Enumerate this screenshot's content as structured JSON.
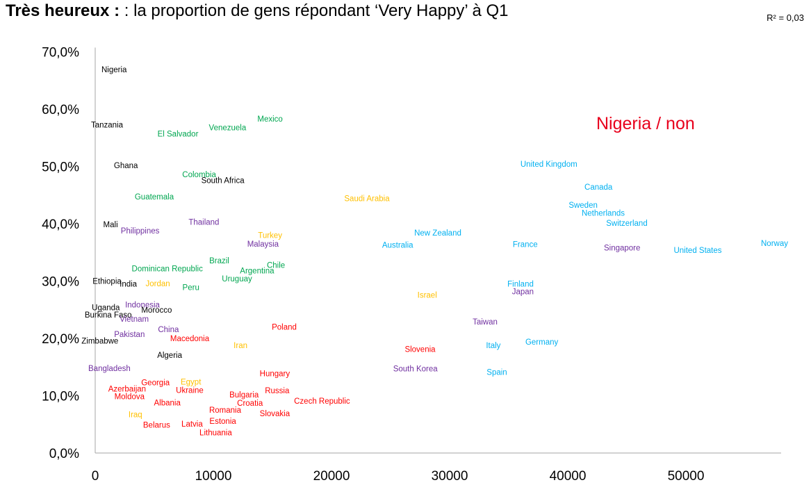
{
  "header": {
    "title_bold": "Très heureux :",
    "title_rest": " : la proportion de gens répondant ‘Very Happy’ à Q1",
    "r2": "R² = 0,03"
  },
  "annotation": "Nigeria / non",
  "colors": {
    "black": "#000000",
    "green": "#00a650",
    "purple": "#7030a0",
    "cyan": "#00b0f0",
    "orange": "#ffc000",
    "red": "#ff0000"
  },
  "chart_data": {
    "type": "scatter",
    "title": "Très heureux : : la proportion de gens répondant ‘Very Happy’ à Q1",
    "xlabel": "",
    "ylabel": "",
    "xlim": [
      0,
      58500
    ],
    "ylim": [
      0,
      70
    ],
    "x_ticks": [
      "0",
      "10000",
      "20000",
      "30000",
      "40000",
      "50000"
    ],
    "y_ticks": [
      "0,0%",
      "10,0%",
      "20,0%",
      "30,0%",
      "40,0%",
      "50,0%",
      "60,0%",
      "70,0%"
    ],
    "grid": false,
    "points": [
      {
        "label": "Nigeria",
        "x": 1600,
        "y": 66.9,
        "color": "black"
      },
      {
        "label": "Tanzania",
        "x": 1000,
        "y": 57.3,
        "color": "black"
      },
      {
        "label": "Ghana",
        "x": 2600,
        "y": 50.2,
        "color": "black"
      },
      {
        "label": "South Africa",
        "x": 10800,
        "y": 47.6,
        "color": "black"
      },
      {
        "label": "Mali",
        "x": 1300,
        "y": 39.9,
        "color": "black"
      },
      {
        "label": "Ethiopia",
        "x": 1000,
        "y": 30.0,
        "color": "black"
      },
      {
        "label": "India",
        "x": 2800,
        "y": 29.5,
        "color": "black"
      },
      {
        "label": "Uganda",
        "x": 900,
        "y": 25.4,
        "color": "black"
      },
      {
        "label": "Morocco",
        "x": 5200,
        "y": 25.0,
        "color": "black"
      },
      {
        "label": "Burkina Faso",
        "x": 1100,
        "y": 24.1,
        "color": "black"
      },
      {
        "label": "Zimbabwe",
        "x": 400,
        "y": 19.6,
        "color": "black"
      },
      {
        "label": "Algeria",
        "x": 6300,
        "y": 17.1,
        "color": "black"
      },
      {
        "label": "Mexico",
        "x": 14800,
        "y": 58.3,
        "color": "green"
      },
      {
        "label": "Venezuela",
        "x": 11200,
        "y": 56.8,
        "color": "green"
      },
      {
        "label": "El Salvador",
        "x": 7000,
        "y": 55.7,
        "color": "green"
      },
      {
        "label": "Colombia",
        "x": 8800,
        "y": 48.6,
        "color": "green"
      },
      {
        "label": "Guatemala",
        "x": 5000,
        "y": 44.7,
        "color": "green"
      },
      {
        "label": "Brazil",
        "x": 10500,
        "y": 33.6,
        "color": "green"
      },
      {
        "label": "Dominican Republic",
        "x": 6100,
        "y": 32.2,
        "color": "green"
      },
      {
        "label": "Chile",
        "x": 15300,
        "y": 32.8,
        "color": "green"
      },
      {
        "label": "Argentina",
        "x": 13700,
        "y": 31.8,
        "color": "green"
      },
      {
        "label": "Uruguay",
        "x": 12000,
        "y": 30.4,
        "color": "green"
      },
      {
        "label": "Peru",
        "x": 8100,
        "y": 28.9,
        "color": "green"
      },
      {
        "label": "Thailand",
        "x": 9200,
        "y": 40.3,
        "color": "purple"
      },
      {
        "label": "Philippines",
        "x": 3800,
        "y": 38.8,
        "color": "purple"
      },
      {
        "label": "Malaysia",
        "x": 14200,
        "y": 36.5,
        "color": "purple"
      },
      {
        "label": "Indonesia",
        "x": 4000,
        "y": 25.9,
        "color": "purple"
      },
      {
        "label": "Vietnam",
        "x": 3300,
        "y": 23.4,
        "color": "purple"
      },
      {
        "label": "China",
        "x": 6200,
        "y": 21.6,
        "color": "purple"
      },
      {
        "label": "Pakistan",
        "x": 2900,
        "y": 20.7,
        "color": "purple"
      },
      {
        "label": "Bangladesh",
        "x": 1200,
        "y": 14.8,
        "color": "purple"
      },
      {
        "label": "Singapore",
        "x": 44600,
        "y": 35.8,
        "color": "purple"
      },
      {
        "label": "Japan",
        "x": 36200,
        "y": 28.2,
        "color": "purple"
      },
      {
        "label": "Taiwan",
        "x": 33000,
        "y": 22.9,
        "color": "purple"
      },
      {
        "label": "South Korea",
        "x": 27100,
        "y": 14.7,
        "color": "purple"
      },
      {
        "label": "United Kingdom",
        "x": 38400,
        "y": 50.4,
        "color": "cyan"
      },
      {
        "label": "Canada",
        "x": 42600,
        "y": 46.4,
        "color": "cyan"
      },
      {
        "label": "Sweden",
        "x": 41300,
        "y": 43.3,
        "color": "cyan"
      },
      {
        "label": "Netherlands",
        "x": 43000,
        "y": 41.9,
        "color": "cyan"
      },
      {
        "label": "Switzerland",
        "x": 45000,
        "y": 40.1,
        "color": "cyan"
      },
      {
        "label": "New Zealand",
        "x": 29000,
        "y": 38.4,
        "color": "cyan"
      },
      {
        "label": "Australia",
        "x": 25600,
        "y": 36.3,
        "color": "cyan"
      },
      {
        "label": "France",
        "x": 36400,
        "y": 36.4,
        "color": "cyan"
      },
      {
        "label": "United States",
        "x": 51000,
        "y": 35.4,
        "color": "cyan"
      },
      {
        "label": "Norway",
        "x": 57500,
        "y": 36.6,
        "color": "cyan"
      },
      {
        "label": "Finland",
        "x": 36000,
        "y": 29.5,
        "color": "cyan"
      },
      {
        "label": "Germany",
        "x": 37800,
        "y": 19.4,
        "color": "cyan"
      },
      {
        "label": "Italy",
        "x": 33700,
        "y": 18.8,
        "color": "cyan"
      },
      {
        "label": "Spain",
        "x": 34000,
        "y": 14.1,
        "color": "cyan"
      },
      {
        "label": "Saudi Arabia",
        "x": 23000,
        "y": 44.4,
        "color": "orange"
      },
      {
        "label": "Turkey",
        "x": 14800,
        "y": 38.0,
        "color": "orange"
      },
      {
        "label": "Jordan",
        "x": 5300,
        "y": 29.6,
        "color": "orange"
      },
      {
        "label": "Israel",
        "x": 28100,
        "y": 27.6,
        "color": "orange"
      },
      {
        "label": "Iran",
        "x": 12300,
        "y": 18.8,
        "color": "orange"
      },
      {
        "label": "Egypt",
        "x": 8100,
        "y": 12.4,
        "color": "orange"
      },
      {
        "label": "Iraq",
        "x": 3400,
        "y": 6.7,
        "color": "orange"
      },
      {
        "label": "Poland",
        "x": 16000,
        "y": 22.0,
        "color": "red"
      },
      {
        "label": "Macedonia",
        "x": 8000,
        "y": 20.0,
        "color": "red"
      },
      {
        "label": "Slovenia",
        "x": 27500,
        "y": 18.1,
        "color": "red"
      },
      {
        "label": "Hungary",
        "x": 15200,
        "y": 13.9,
        "color": "red"
      },
      {
        "label": "Georgia",
        "x": 5100,
        "y": 12.3,
        "color": "red"
      },
      {
        "label": "Azerbaijan",
        "x": 2700,
        "y": 11.2,
        "color": "red"
      },
      {
        "label": "Ukraine",
        "x": 8000,
        "y": 11.0,
        "color": "red"
      },
      {
        "label": "Moldova",
        "x": 2900,
        "y": 9.9,
        "color": "red"
      },
      {
        "label": "Russia",
        "x": 15400,
        "y": 10.9,
        "color": "red"
      },
      {
        "label": "Bulgaria",
        "x": 12600,
        "y": 10.2,
        "color": "red"
      },
      {
        "label": "Croatia",
        "x": 13100,
        "y": 8.7,
        "color": "red"
      },
      {
        "label": "Czech Republic",
        "x": 19200,
        "y": 9.1,
        "color": "red"
      },
      {
        "label": "Albania",
        "x": 6100,
        "y": 8.8,
        "color": "red"
      },
      {
        "label": "Romania",
        "x": 11000,
        "y": 7.5,
        "color": "red"
      },
      {
        "label": "Slovakia",
        "x": 15200,
        "y": 6.9,
        "color": "red"
      },
      {
        "label": "Estonia",
        "x": 10800,
        "y": 5.6,
        "color": "red"
      },
      {
        "label": "Latvia",
        "x": 8200,
        "y": 5.1,
        "color": "red"
      },
      {
        "label": "Belarus",
        "x": 5200,
        "y": 4.9,
        "color": "red"
      },
      {
        "label": "Lithuania",
        "x": 10200,
        "y": 3.6,
        "color": "red"
      }
    ]
  }
}
